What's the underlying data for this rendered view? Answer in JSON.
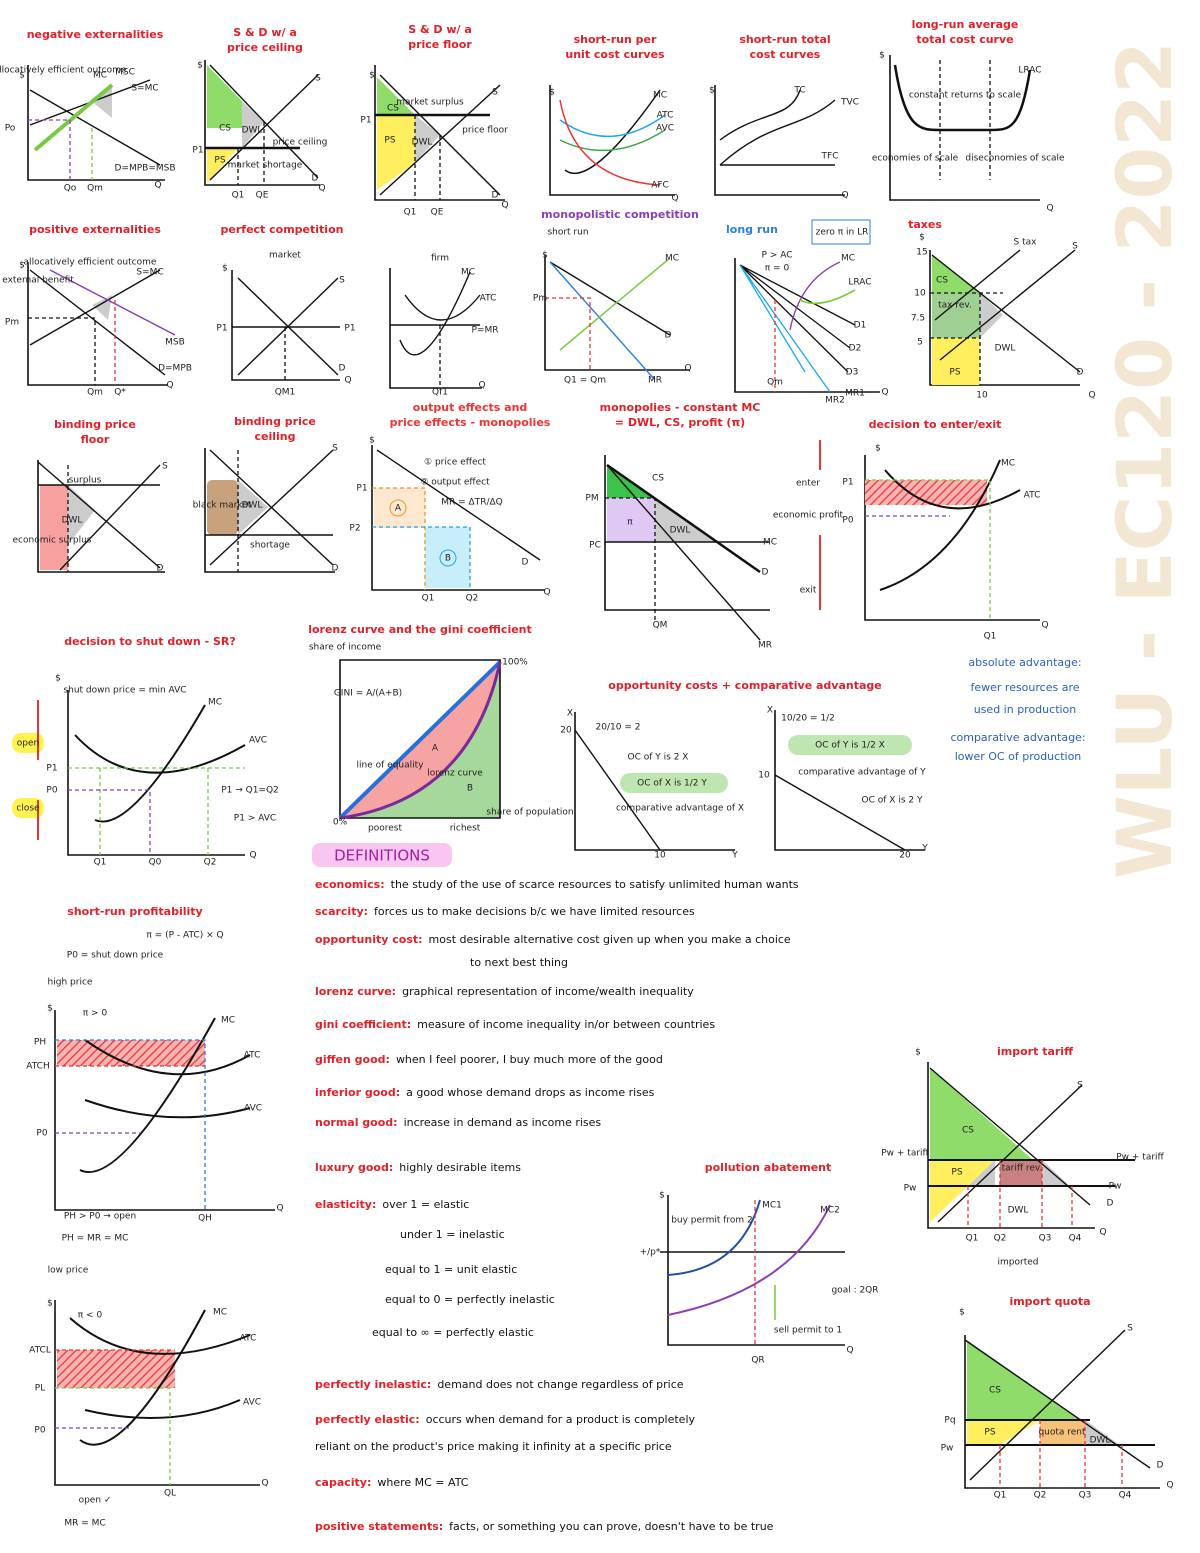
{
  "watermark": "WLU - EC120 - 2022",
  "panels": [
    {
      "title": [
        "negative externalities"
      ],
      "labels": [
        "$",
        "allocatively efficient outcome",
        "MC",
        "MSC",
        "S=MC",
        "Po",
        "Qo",
        "Qm",
        "D=MPB=MSB",
        "Q"
      ]
    },
    {
      "title": [
        "S & D w/ a",
        "price ceiling"
      ],
      "labels": [
        "$",
        "S",
        "D",
        "CS",
        "PS",
        "DWL",
        "price ceiling",
        "market shortage",
        "P1",
        "Q1",
        "QE",
        "Q"
      ]
    },
    {
      "title": [
        "S & D w/ a",
        "price floor"
      ],
      "labels": [
        "$",
        "S",
        "D",
        "CS",
        "PS",
        "DWL",
        "market surplus",
        "price floor",
        "P1",
        "Q1",
        "QE",
        "Q"
      ]
    },
    {
      "title": [
        "short-run per",
        "unit cost curves"
      ],
      "labels": [
        "$",
        "MC",
        "ATC",
        "AVC",
        "AFC",
        "Q"
      ]
    },
    {
      "title": [
        "short-run total",
        "cost curves"
      ],
      "labels": [
        "$",
        "TC",
        "TVC",
        "TFC",
        "Q"
      ]
    },
    {
      "title": [
        "long-run average",
        "total cost curve"
      ],
      "labels": [
        "$",
        "LRAC",
        "constant returns to scale",
        "economies of scale",
        "diseconomies of scale",
        "Q"
      ]
    },
    {
      "title": [
        "positive externalities"
      ],
      "labels": [
        "$",
        "allocatively efficient outcome",
        "external benefit",
        "S=MC",
        "MSB",
        "D=MPB",
        "Pm",
        "Qm",
        "Q*",
        "Q"
      ]
    },
    {
      "title": [
        "perfect competition"
      ],
      "labels": [
        "market",
        "firm",
        "$",
        "S",
        "D",
        "P1",
        "P1",
        "QM1",
        "Q",
        "MC",
        "ATC",
        "P=MR",
        "Qf1",
        "Q"
      ]
    },
    {
      "title": [
        "monopolistic competition"
      ],
      "labels": [
        "short run",
        "$",
        "MC",
        "D",
        "MR",
        "Pm",
        "Q1 = Qm",
        "Q"
      ]
    },
    {
      "title": [
        "long run"
      ],
      "labels": [
        "zero π in LR",
        "P > AC",
        "π = 0",
        "MC",
        "LRAC",
        "D1",
        "D2",
        "D3",
        "MR1",
        "MR2",
        "Qm",
        "Q"
      ]
    },
    {
      "title": [
        "taxes"
      ],
      "labels": [
        "$",
        "S tax",
        "S",
        "CS",
        "tax rev.",
        "PS",
        "DWL",
        "D",
        "15",
        "10",
        "7.5",
        "5",
        "10",
        "Q"
      ]
    },
    {
      "title": [
        "binding price",
        "floor"
      ],
      "labels": [
        "surplus",
        "S",
        "D",
        "DWL",
        "economic surplus"
      ]
    },
    {
      "title": [
        "binding price",
        "ceiling"
      ],
      "labels": [
        "S",
        "D",
        "DWL",
        "shortage",
        "black market"
      ]
    },
    {
      "title": [
        "output effects and",
        "price effects - monopolies"
      ],
      "labels": [
        "$",
        "① price effect",
        "② output effect",
        "MR = ΔTR/ΔQ",
        "P1",
        "P2",
        "A",
        "B",
        "Q1",
        "Q2",
        "D",
        "Q"
      ]
    },
    {
      "title": [
        "monopolies - constant MC",
        "= DWL, CS, profit (π)"
      ],
      "labels": [
        "CS",
        "PM",
        "PC",
        "π",
        "DWL",
        "MC",
        "D",
        "QM",
        "MR"
      ]
    },
    {
      "title": [
        "decision to enter/exit"
      ],
      "labels": [
        "$",
        "MC",
        "ATC",
        "P1",
        "P0",
        "enter",
        "exit",
        "economic profit",
        "Q1",
        "Q"
      ]
    },
    {
      "title": [
        "decision to shut down - SR?"
      ],
      "labels": [
        "$",
        "shut down price = min AVC",
        "MC",
        "AVC",
        "open",
        "close",
        "P1",
        "P0",
        "Q1",
        "Q0",
        "Q2",
        "P1 → Q1=Q2",
        "P1 > AVC",
        "Q"
      ]
    },
    {
      "title": [
        "lorenz curve and the gini coefficient"
      ],
      "labels": [
        "share of income",
        "100%",
        "line of equality",
        "GINI = A/(A+B)",
        "A",
        "B",
        "lorenz curve",
        "0%",
        "poorest",
        "richest",
        "share of population"
      ]
    },
    {
      "title": [
        "opportunity costs + comparative advantage"
      ],
      "labels": [
        "X",
        "20",
        "20/10 = 2",
        "OC of Y is 2 X",
        "OC of X is 1/2 Y",
        "comparative advantage of X",
        "10",
        "Y",
        "X",
        "10/20 = 1/2",
        "OC of Y is 1/2 X",
        "comparative advantage of Y",
        "10",
        "OC of X is 2 Y",
        "20",
        "Y"
      ]
    },
    {
      "title": [
        "short-run profitability"
      ],
      "labels": [
        "π = (P - ATC) × Q",
        "P0 = shut down price",
        "high price",
        "$",
        "π > 0",
        "MC",
        "ATC",
        "AVC",
        "PH",
        "ATCH",
        "P0",
        "QH",
        "Q",
        "PH > P0 → open",
        "PH = MR = MC",
        "low price",
        "$",
        "π < 0",
        "MC",
        "ATC",
        "AVC",
        "ATCL",
        "PL",
        "P0",
        "QL",
        "Q",
        "open ✓",
        "MR = MC"
      ]
    },
    {
      "title": [
        "pollution abatement"
      ],
      "labels": [
        "$",
        "buy permit from 2",
        "MC1",
        "MC2",
        "+/p*",
        "goal : 2QR",
        "sell permit to 1",
        "QR",
        "Q"
      ]
    },
    {
      "title": [
        "import tariff"
      ],
      "labels": [
        "$",
        "S",
        "CS",
        "Pw + tariff",
        "Pw",
        "PS",
        "tariff rev.",
        "DWL",
        "Q1",
        "Q2",
        "Q3",
        "Q4",
        "imported",
        "Pw + tariff",
        "Pw",
        "D",
        "Q"
      ]
    },
    {
      "title": [
        "import quota"
      ],
      "labels": [
        "$",
        "S",
        "CS",
        "PS",
        "quota rent",
        "DWL",
        "Pq",
        "Pw",
        "Q1",
        "Q2",
        "Q3",
        "Q4",
        "D",
        "Q"
      ]
    }
  ],
  "advantage_notes": [
    "absolute advantage:",
    "fewer resources are",
    "used in production",
    "comparative advantage:",
    "lower OC of production"
  ],
  "definitions_heading": "DEFINITIONS",
  "definitions": [
    {
      "term": "economics:",
      "lines": [
        "the study of the use of scarce resources to satisfy unlimited human wants"
      ]
    },
    {
      "term": "scarcity:",
      "lines": [
        "forces us to make decisions b/c we have limited resources"
      ]
    },
    {
      "term": "opportunity cost:",
      "lines": [
        "most desirable alternative cost given up when you make a choice",
        "to next best thing"
      ]
    },
    {
      "term": "lorenz curve:",
      "lines": [
        "graphical representation of income/wealth inequality"
      ]
    },
    {
      "term": "gini coefficient:",
      "lines": [
        "measure of income inequality in/or between countries"
      ]
    },
    {
      "term": "giffen good:",
      "lines": [
        "when I feel poorer, I buy much more of the good"
      ]
    },
    {
      "term": "inferior good:",
      "lines": [
        "a good whose demand drops as income rises"
      ]
    },
    {
      "term": "normal good:",
      "lines": [
        "increase in demand as income rises"
      ]
    },
    {
      "term": "luxury good:",
      "lines": [
        "highly desirable items"
      ]
    },
    {
      "term": "elasticity:",
      "lines": [
        "over 1 = elastic",
        "under 1 = inelastic",
        "equal to 1 = unit elastic",
        "equal to 0 = perfectly inelastic",
        "equal to ∞ = perfectly elastic"
      ]
    },
    {
      "term": "perfectly inelastic:",
      "lines": [
        "demand does not change regardless of price"
      ]
    },
    {
      "term": "perfectly elastic:",
      "lines": [
        "occurs when demand for a product is completely",
        "reliant on the product's price making it infinity at a specific price"
      ]
    },
    {
      "term": "capacity:",
      "lines": [
        "where MC = ATC"
      ]
    },
    {
      "term": "positive statements:",
      "lines": [
        "facts, or something you can prove, doesn't have to be true"
      ]
    }
  ]
}
